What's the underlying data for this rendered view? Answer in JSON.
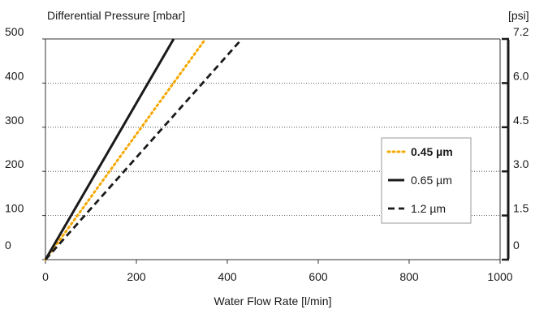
{
  "chart_data": {
    "type": "line",
    "ylabel": "Differential Pressure [mbar]",
    "y2label": "[psi]",
    "xlabel": "Water Flow Rate [l/min]",
    "xlim": [
      0,
      1000
    ],
    "ylim": [
      0,
      500
    ],
    "x_ticks": [
      0,
      200,
      400,
      600,
      800,
      1000
    ],
    "y_ticks": [
      0,
      100,
      200,
      300,
      400,
      500
    ],
    "y2_ticks": [
      "0",
      "1.5",
      "3.0",
      "4.5",
      "6.0",
      "7.2"
    ],
    "grid": "horizontal dotted",
    "legend_position": "right",
    "series": [
      {
        "name": "0.45 µm",
        "style": "dotted",
        "color": "#f5a800",
        "x": [
          0,
          352
        ],
        "y": [
          0,
          500
        ]
      },
      {
        "name": "0.65 µm",
        "style": "solid",
        "color": "#1a1a1a",
        "x": [
          0,
          282
        ],
        "y": [
          0,
          500
        ]
      },
      {
        "name": "1.2 µm",
        "style": "dashed",
        "color": "#1a1a1a",
        "x": [
          0,
          432
        ],
        "y": [
          0,
          500
        ]
      }
    ]
  }
}
